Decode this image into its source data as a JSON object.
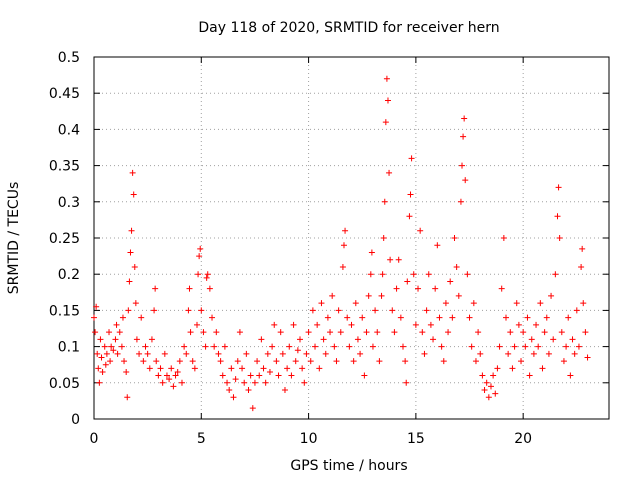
{
  "chart_data": {
    "type": "scatter",
    "title": "Day 118 of 2020, SRMTID for receiver hern",
    "xlabel": "GPS time / hours",
    "ylabel": "SRMTID / TECUs",
    "xlim": [
      0,
      24
    ],
    "ylim": [
      0,
      0.5
    ],
    "xticks": [
      0,
      5,
      10,
      15,
      20
    ],
    "xtick_labels": [
      "0",
      "5",
      "10",
      "15",
      "20"
    ],
    "yticks": [
      0,
      0.05,
      0.1,
      0.15,
      0.2,
      0.25,
      0.3,
      0.35,
      0.4,
      0.45,
      0.5
    ],
    "ytick_labels": [
      "0",
      "0.05",
      "0.1",
      "0.15",
      "0.2",
      "0.25",
      "0.3",
      "0.35",
      "0.4",
      "0.45",
      "0.5"
    ],
    "grid": true,
    "marker": "+",
    "color": "#ff0000",
    "series": [
      {
        "name": "SRMTID",
        "points": [
          [
            0.0,
            0.14
          ],
          [
            0.05,
            0.12
          ],
          [
            0.1,
            0.155
          ],
          [
            0.15,
            0.09
          ],
          [
            0.2,
            0.07
          ],
          [
            0.25,
            0.05
          ],
          [
            0.3,
            0.11
          ],
          [
            0.35,
            0.085
          ],
          [
            0.4,
            0.065
          ],
          [
            0.5,
            0.1
          ],
          [
            0.55,
            0.075
          ],
          [
            0.6,
            0.09
          ],
          [
            0.7,
            0.12
          ],
          [
            0.75,
            0.08
          ],
          [
            0.8,
            0.1
          ],
          [
            0.9,
            0.095
          ],
          [
            1.0,
            0.11
          ],
          [
            1.05,
            0.13
          ],
          [
            1.1,
            0.09
          ],
          [
            1.2,
            0.12
          ],
          [
            1.3,
            0.1
          ],
          [
            1.35,
            0.14
          ],
          [
            1.4,
            0.08
          ],
          [
            1.5,
            0.065
          ],
          [
            1.55,
            0.03
          ],
          [
            1.6,
            0.15
          ],
          [
            1.65,
            0.19
          ],
          [
            1.7,
            0.23
          ],
          [
            1.75,
            0.26
          ],
          [
            1.8,
            0.34
          ],
          [
            1.85,
            0.31
          ],
          [
            1.9,
            0.21
          ],
          [
            1.95,
            0.16
          ],
          [
            2.0,
            0.11
          ],
          [
            2.1,
            0.09
          ],
          [
            2.2,
            0.14
          ],
          [
            2.3,
            0.08
          ],
          [
            2.4,
            0.1
          ],
          [
            2.5,
            0.09
          ],
          [
            2.6,
            0.07
          ],
          [
            2.7,
            0.11
          ],
          [
            2.8,
            0.15
          ],
          [
            2.85,
            0.18
          ],
          [
            2.9,
            0.08
          ],
          [
            3.0,
            0.06
          ],
          [
            3.1,
            0.07
          ],
          [
            3.2,
            0.05
          ],
          [
            3.3,
            0.09
          ],
          [
            3.4,
            0.06
          ],
          [
            3.5,
            0.055
          ],
          [
            3.6,
            0.07
          ],
          [
            3.7,
            0.045
          ],
          [
            3.8,
            0.06
          ],
          [
            3.9,
            0.065
          ],
          [
            4.0,
            0.08
          ],
          [
            4.1,
            0.05
          ],
          [
            4.2,
            0.1
          ],
          [
            4.3,
            0.09
          ],
          [
            4.4,
            0.15
          ],
          [
            4.45,
            0.18
          ],
          [
            4.5,
            0.12
          ],
          [
            4.6,
            0.08
          ],
          [
            4.7,
            0.07
          ],
          [
            4.8,
            0.13
          ],
          [
            4.85,
            0.2
          ],
          [
            4.9,
            0.225
          ],
          [
            4.95,
            0.235
          ],
          [
            5.0,
            0.15
          ],
          [
            5.1,
            0.12
          ],
          [
            5.2,
            0.1
          ],
          [
            5.25,
            0.195
          ],
          [
            5.3,
            0.2
          ],
          [
            5.4,
            0.18
          ],
          [
            5.5,
            0.14
          ],
          [
            5.6,
            0.1
          ],
          [
            5.7,
            0.12
          ],
          [
            5.8,
            0.09
          ],
          [
            5.9,
            0.08
          ],
          [
            6.0,
            0.06
          ],
          [
            6.1,
            0.1
          ],
          [
            6.2,
            0.05
          ],
          [
            6.3,
            0.04
          ],
          [
            6.4,
            0.07
          ],
          [
            6.5,
            0.03
          ],
          [
            6.6,
            0.055
          ],
          [
            6.7,
            0.08
          ],
          [
            6.8,
            0.12
          ],
          [
            6.9,
            0.07
          ],
          [
            7.0,
            0.05
          ],
          [
            7.1,
            0.09
          ],
          [
            7.2,
            0.04
          ],
          [
            7.3,
            0.06
          ],
          [
            7.4,
            0.015
          ],
          [
            7.5,
            0.05
          ],
          [
            7.6,
            0.08
          ],
          [
            7.7,
            0.06
          ],
          [
            7.8,
            0.11
          ],
          [
            7.9,
            0.07
          ],
          [
            8.0,
            0.05
          ],
          [
            8.1,
            0.09
          ],
          [
            8.2,
            0.065
          ],
          [
            8.3,
            0.1
          ],
          [
            8.4,
            0.13
          ],
          [
            8.5,
            0.08
          ],
          [
            8.6,
            0.06
          ],
          [
            8.7,
            0.12
          ],
          [
            8.8,
            0.09
          ],
          [
            8.9,
            0.04
          ],
          [
            9.0,
            0.07
          ],
          [
            9.1,
            0.1
          ],
          [
            9.2,
            0.06
          ],
          [
            9.3,
            0.13
          ],
          [
            9.4,
            0.08
          ],
          [
            9.5,
            0.095
          ],
          [
            9.6,
            0.11
          ],
          [
            9.7,
            0.07
          ],
          [
            9.8,
            0.05
          ],
          [
            9.9,
            0.09
          ],
          [
            10.0,
            0.12
          ],
          [
            10.1,
            0.08
          ],
          [
            10.2,
            0.15
          ],
          [
            10.3,
            0.1
          ],
          [
            10.4,
            0.13
          ],
          [
            10.5,
            0.07
          ],
          [
            10.6,
            0.16
          ],
          [
            10.7,
            0.11
          ],
          [
            10.8,
            0.09
          ],
          [
            10.9,
            0.14
          ],
          [
            11.0,
            0.12
          ],
          [
            11.1,
            0.17
          ],
          [
            11.2,
            0.1
          ],
          [
            11.3,
            0.08
          ],
          [
            11.4,
            0.15
          ],
          [
            11.5,
            0.12
          ],
          [
            11.6,
            0.21
          ],
          [
            11.65,
            0.24
          ],
          [
            11.7,
            0.26
          ],
          [
            11.8,
            0.14
          ],
          [
            11.9,
            0.1
          ],
          [
            12.0,
            0.13
          ],
          [
            12.1,
            0.08
          ],
          [
            12.2,
            0.16
          ],
          [
            12.3,
            0.11
          ],
          [
            12.4,
            0.09
          ],
          [
            12.5,
            0.14
          ],
          [
            12.6,
            0.06
          ],
          [
            12.7,
            0.12
          ],
          [
            12.8,
            0.17
          ],
          [
            12.9,
            0.2
          ],
          [
            12.95,
            0.23
          ],
          [
            13.0,
            0.1
          ],
          [
            13.1,
            0.15
          ],
          [
            13.2,
            0.12
          ],
          [
            13.3,
            0.08
          ],
          [
            13.4,
            0.17
          ],
          [
            13.45,
            0.2
          ],
          [
            13.5,
            0.25
          ],
          [
            13.55,
            0.3
          ],
          [
            13.6,
            0.41
          ],
          [
            13.65,
            0.47
          ],
          [
            13.7,
            0.44
          ],
          [
            13.75,
            0.34
          ],
          [
            13.8,
            0.22
          ],
          [
            13.9,
            0.15
          ],
          [
            14.0,
            0.12
          ],
          [
            14.1,
            0.18
          ],
          [
            14.2,
            0.22
          ],
          [
            14.3,
            0.14
          ],
          [
            14.4,
            0.1
          ],
          [
            14.5,
            0.08
          ],
          [
            14.55,
            0.05
          ],
          [
            14.6,
            0.19
          ],
          [
            14.7,
            0.28
          ],
          [
            14.75,
            0.31
          ],
          [
            14.8,
            0.36
          ],
          [
            14.9,
            0.2
          ],
          [
            15.0,
            0.13
          ],
          [
            15.1,
            0.18
          ],
          [
            15.2,
            0.26
          ],
          [
            15.3,
            0.12
          ],
          [
            15.4,
            0.09
          ],
          [
            15.5,
            0.15
          ],
          [
            15.6,
            0.2
          ],
          [
            15.7,
            0.13
          ],
          [
            15.8,
            0.11
          ],
          [
            15.9,
            0.18
          ],
          [
            16.0,
            0.24
          ],
          [
            16.1,
            0.14
          ],
          [
            16.2,
            0.1
          ],
          [
            16.3,
            0.08
          ],
          [
            16.4,
            0.16
          ],
          [
            16.5,
            0.12
          ],
          [
            16.6,
            0.19
          ],
          [
            16.7,
            0.14
          ],
          [
            16.8,
            0.25
          ],
          [
            16.9,
            0.21
          ],
          [
            17.0,
            0.17
          ],
          [
            17.1,
            0.3
          ],
          [
            17.15,
            0.35
          ],
          [
            17.2,
            0.39
          ],
          [
            17.25,
            0.415
          ],
          [
            17.3,
            0.33
          ],
          [
            17.4,
            0.2
          ],
          [
            17.5,
            0.14
          ],
          [
            17.6,
            0.1
          ],
          [
            17.7,
            0.16
          ],
          [
            17.8,
            0.08
          ],
          [
            17.9,
            0.12
          ],
          [
            18.0,
            0.09
          ],
          [
            18.1,
            0.06
          ],
          [
            18.2,
            0.04
          ],
          [
            18.3,
            0.05
          ],
          [
            18.4,
            0.03
          ],
          [
            18.5,
            0.045
          ],
          [
            18.6,
            0.06
          ],
          [
            18.7,
            0.035
          ],
          [
            18.8,
            0.07
          ],
          [
            18.9,
            0.1
          ],
          [
            19.0,
            0.18
          ],
          [
            19.1,
            0.25
          ],
          [
            19.2,
            0.14
          ],
          [
            19.3,
            0.09
          ],
          [
            19.4,
            0.12
          ],
          [
            19.5,
            0.07
          ],
          [
            19.6,
            0.1
          ],
          [
            19.7,
            0.16
          ],
          [
            19.8,
            0.13
          ],
          [
            19.9,
            0.08
          ],
          [
            20.0,
            0.12
          ],
          [
            20.1,
            0.1
          ],
          [
            20.2,
            0.14
          ],
          [
            20.3,
            0.06
          ],
          [
            20.4,
            0.11
          ],
          [
            20.5,
            0.09
          ],
          [
            20.6,
            0.13
          ],
          [
            20.7,
            0.1
          ],
          [
            20.8,
            0.16
          ],
          [
            20.9,
            0.07
          ],
          [
            21.0,
            0.12
          ],
          [
            21.1,
            0.14
          ],
          [
            21.2,
            0.09
          ],
          [
            21.3,
            0.17
          ],
          [
            21.4,
            0.11
          ],
          [
            21.5,
            0.2
          ],
          [
            21.6,
            0.28
          ],
          [
            21.65,
            0.32
          ],
          [
            21.7,
            0.25
          ],
          [
            21.8,
            0.12
          ],
          [
            21.9,
            0.08
          ],
          [
            22.0,
            0.1
          ],
          [
            22.1,
            0.14
          ],
          [
            22.2,
            0.06
          ],
          [
            22.3,
            0.11
          ],
          [
            22.4,
            0.09
          ],
          [
            22.5,
            0.15
          ],
          [
            22.6,
            0.1
          ],
          [
            22.7,
            0.21
          ],
          [
            22.75,
            0.235
          ],
          [
            22.8,
            0.16
          ],
          [
            22.9,
            0.12
          ],
          [
            23.0,
            0.085
          ]
        ]
      }
    ]
  }
}
